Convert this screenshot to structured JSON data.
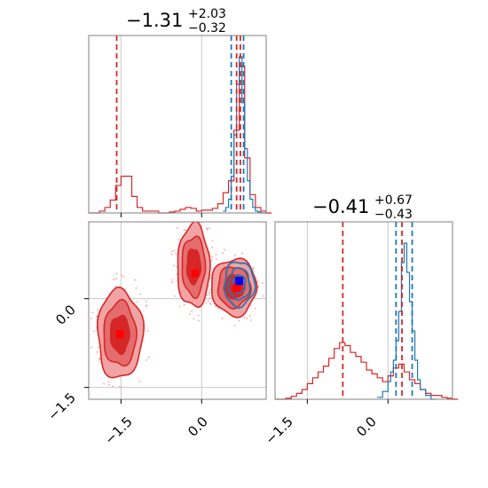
{
  "colors": {
    "red": "#d62728",
    "blue": "#1f77b4",
    "red_fill_light": "#f2a3a3",
    "red_fill_mid": "#e56c6c",
    "red_fill_dark": "#d62728",
    "marker_red": "#ff0000",
    "marker_blue": "#0000ff"
  },
  "chart_data": [
    {
      "type": "histogram",
      "panel": "marginal-param-1",
      "title": {
        "value": "−1.31",
        "sup": "+2.03",
        "sub": "−0.32"
      },
      "xlim": [
        -2.1,
        1.2
      ],
      "grid_x": [
        -1.5,
        0.0
      ],
      "quantile_lines": {
        "red": [
          -1.58,
          0.65,
          0.72
        ],
        "blue": [
          0.55,
          0.78
        ]
      },
      "series": [
        {
          "color": "red",
          "x": [
            -2.1,
            -2.0,
            -1.9,
            -1.8,
            -1.7,
            -1.6,
            -1.5,
            -1.4,
            -1.3,
            -1.2,
            -1.1,
            -1.0,
            -0.9,
            -0.8,
            -0.7,
            -0.6,
            -0.5,
            -0.4,
            -0.3,
            -0.2,
            -0.1,
            0.0,
            0.1,
            0.2,
            0.3,
            0.4,
            0.5,
            0.6,
            0.7,
            0.8,
            0.9,
            1.0,
            1.1,
            1.2
          ],
          "values": [
            0,
            0,
            2,
            6,
            14,
            30,
            40,
            40,
            18,
            6,
            2,
            2,
            2,
            0,
            0,
            1,
            2,
            4,
            6,
            5,
            2,
            3,
            3,
            5,
            10,
            22,
            35,
            90,
            160,
            60,
            20,
            6,
            2,
            0
          ]
        },
        {
          "color": "blue",
          "x": [
            0.4,
            0.45,
            0.5,
            0.55,
            0.6,
            0.65,
            0.7,
            0.75,
            0.8,
            0.85,
            0.9,
            0.95,
            1.0,
            1.05,
            1.1,
            1.15
          ],
          "values": [
            2,
            6,
            15,
            40,
            85,
            140,
            170,
            120,
            70,
            35,
            15,
            6,
            2,
            1,
            0,
            0
          ]
        }
      ]
    },
    {
      "type": "histogram",
      "panel": "marginal-param-2",
      "title": {
        "value": "−0.41",
        "sup": "+0.67",
        "sub": "−0.43"
      },
      "xlim": [
        -2.1,
        1.2
      ],
      "grid_x": [
        -1.5,
        0.0
      ],
      "quantile_lines": {
        "red": [
          -0.84,
          0.26
        ],
        "blue": [
          0.15,
          0.45
        ]
      },
      "series": [
        {
          "color": "red",
          "x": [
            -2.1,
            -2.0,
            -1.9,
            -1.8,
            -1.7,
            -1.6,
            -1.5,
            -1.4,
            -1.3,
            -1.2,
            -1.1,
            -1.0,
            -0.9,
            -0.8,
            -0.7,
            -0.6,
            -0.5,
            -0.4,
            -0.3,
            -0.2,
            -0.1,
            0.0,
            0.1,
            0.2,
            0.3,
            0.4,
            0.5,
            0.6,
            0.7,
            0.8,
            0.9,
            1.0,
            1.1,
            1.2
          ],
          "values": [
            0,
            0,
            1,
            3,
            6,
            10,
            16,
            22,
            28,
            34,
            42,
            52,
            58,
            55,
            48,
            44,
            38,
            30,
            26,
            22,
            18,
            24,
            32,
            36,
            28,
            20,
            16,
            10,
            6,
            4,
            4,
            2,
            1,
            0
          ]
        },
        {
          "color": "blue",
          "x": [
            -0.2,
            -0.1,
            0.0,
            0.05,
            0.1,
            0.15,
            0.2,
            0.25,
            0.3,
            0.35,
            0.4,
            0.45,
            0.5,
            0.55,
            0.6,
            0.7,
            0.8
          ],
          "values": [
            2,
            8,
            18,
            28,
            40,
            60,
            90,
            140,
            160,
            130,
            100,
            70,
            40,
            20,
            10,
            4,
            0
          ]
        }
      ]
    },
    {
      "type": "contour",
      "panel": "joint-param-1-vs-param-2",
      "xlim": [
        -2.1,
        1.2
      ],
      "ylim": [
        -1.7,
        1.3
      ],
      "grid_x": [
        -1.5,
        0.0
      ],
      "grid_y": [
        -1.5,
        0.0
      ],
      "x_tick_labels": [
        "−1.5",
        "0.0"
      ],
      "y_tick_labels": [
        "−1.5",
        "0.0"
      ],
      "x2_tick_labels": [
        "−1.5",
        "0.0"
      ],
      "markers": [
        {
          "color": "marker_red",
          "x": -1.52,
          "y": -0.6
        },
        {
          "color": "marker_red",
          "x": -0.12,
          "y": 0.43
        },
        {
          "color": "marker_red",
          "x": 0.65,
          "y": 0.18
        },
        {
          "color": "marker_blue",
          "x": 0.7,
          "y": 0.3
        }
      ],
      "red_modes": [
        {
          "cx": -1.52,
          "cy": -0.6,
          "rx": 0.42,
          "ry": 0.75
        },
        {
          "cx": -0.15,
          "cy": 0.55,
          "rx": 0.3,
          "ry": 0.7
        },
        {
          "cx": 0.6,
          "cy": 0.2,
          "rx": 0.42,
          "ry": 0.48
        }
      ],
      "blue_mode": {
        "cx": 0.7,
        "cy": 0.25,
        "rx": 0.28,
        "ry": 0.38
      }
    }
  ]
}
